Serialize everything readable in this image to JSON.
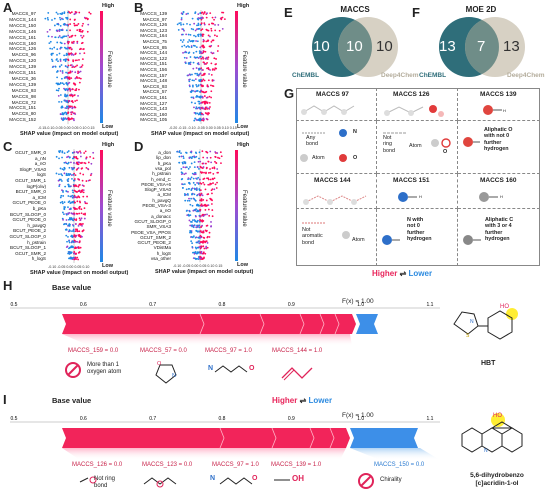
{
  "colors": {
    "high": "#ff0a5a",
    "low": "#1e88e5",
    "red": "#e8245a",
    "blue": "#2d8be0",
    "lightred": "#f7a7bd"
  },
  "panels": {
    "A": "A",
    "B": "B",
    "C": "C",
    "D": "D",
    "E": "E",
    "F": "F",
    "G": "G",
    "H": "H",
    "I": "I"
  },
  "shap": {
    "high": "High",
    "low": "Low",
    "feature_value": "Feature value",
    "xlabel": "SHAP value (impact on model output)",
    "ticks_A": "-0.15-0.10-0.05 0.00 0.05 0.10 0.15",
    "ticks_B": "-0.20 -0.15 -0.10 -0.05 0.00 0.05 0.10 0.15",
    "ticks_C": "-0.10 -0.05 0.00 0.05 0.10",
    "ticks_D": "-0.10 -0.05 0.00 0.05 0.10 0.15",
    "A": [
      "MACCS_97",
      "MACCS_144",
      "MACCS_150",
      "MACCS_146",
      "MACCS_161",
      "MACCS_160",
      "MACCS_126",
      "MACCS_96",
      "MACCS_120",
      "MACCS_139",
      "MACCS_151",
      "MACCS_36",
      "MACCS_139",
      "MACCS_93",
      "MACCS_98",
      "MACCS_72",
      "MACCS_151",
      "MACCS_80",
      "MACCS_152"
    ],
    "B": [
      "MACCS_139",
      "MACCS_97",
      "MACCS_126",
      "MACCS_123",
      "MACCS_164",
      "MACCS_75",
      "MACCS_85",
      "MACCS_144",
      "MACCS_122",
      "MACCS_151",
      "MACCS_156",
      "MACCS_157",
      "MACCS_148",
      "MACCS_93",
      "MACCS_57",
      "MACCS_161",
      "MACCS_127",
      "MACCS_143",
      "MACCS_160",
      "MACCS_105"
    ],
    "C": [
      "GCUT_SMR_0",
      "a_nN",
      "a_nO",
      "SlogP_VSA0",
      "logS",
      "GCUT_SMR_1",
      "logP(o/w)",
      "BCUT_SMR_0",
      "a_ICM",
      "GCUT_PEOE_0",
      "b_pKa",
      "BCUT_SLOGP_0",
      "GCUT_PEOE_0",
      "h_pavgQ",
      "BCUT_PEOE_2",
      "GCUT_SLOGP_0",
      "h_pstrain",
      "BCUT_SLOGP_1",
      "GCUT_SMR_2",
      "h_logS"
    ],
    "D": [
      "a_don",
      "lip_don",
      "h_pKa",
      "vsa_pol",
      "h_pstrain",
      "h_emd_C",
      "PEOE_VSA+6",
      "SlogP_VSA0",
      "a_ICM",
      "h_pavgQ",
      "PEOE_VSA-3",
      "a_nO",
      "a_donacc",
      "GCUT_SLOGP_0",
      "SMR_VSA3",
      "PEOE_VSA_PPOS",
      "GCUT_SMR_2",
      "GCUT_PEOE_2",
      "VDistMa",
      "h_logS",
      "vsa_other"
    ]
  },
  "venn": {
    "E": {
      "title": "MACCS",
      "left": "10",
      "mid": "10",
      "right": "10",
      "lab_left": "ChEMBL",
      "lab_right": "Deep4Chem"
    },
    "F": {
      "title": "MOE 2D",
      "left": "13",
      "mid": "7",
      "right": "13",
      "lab_left": "ChEMBL",
      "lab_right": "Deep4Chem"
    }
  },
  "grid": {
    "c97": "MACCS 97",
    "c126": "MACCS 126",
    "c139": "MACCS 139",
    "any_bond": "Any\nbond",
    "atom": "Atom",
    "n_label": "N",
    "o_label": "O",
    "o_label2": "O",
    "not_ring": "Not\nring\nbond",
    "atom2": "Atom",
    "aliph_o": "Aliphatic O\nwith not 0\nfurther\nhydrogen",
    "c144": "MACCS 144",
    "c151": "MACCS 151",
    "c160": "MACCS 160",
    "not_arom": "Not\naromatic\nbond",
    "atom3": "Atom",
    "n_not0": "N with\nnot 0\nfurther\nhydrogen",
    "aliph_c": "Aliphatic C\nwith 3 or 4\nfurther\nhydrogen",
    "h_sub": "H",
    "h_sub2": "H",
    "h_sub3": "H"
  },
  "legend": {
    "higher": "Higher",
    "lower": "Lower",
    "arrows": "⇌"
  },
  "H": {
    "base": "Base value",
    "fx": "F(x) = 1.00",
    "axis": [
      "0.5",
      "0.6",
      "0.7",
      "0.8",
      "0.9",
      "1.0",
      "1.1"
    ],
    "f1": "MACCS_159 = 0.0",
    "f2": "MACCS_57 = 0.0",
    "f3": "MACCS_97 = 1.0",
    "f4": "MACCS_144 = 1.0",
    "cap1": "More than 1\noxygen atom",
    "mol": "HBT",
    "ho": "HO",
    "n_atom": "N",
    "o_atom": "O",
    "s_atom": "S"
  },
  "I": {
    "base": "Base value",
    "fx": "F(x) = 1.00",
    "axis": [
      "0.5",
      "0.6",
      "0.7",
      "0.8",
      "0.9",
      "1.0",
      "1.1"
    ],
    "f1": "MACCS_126 = 0.0",
    "f2": "MACCS_123 = 0.0",
    "f3": "MACCS_97 = 1.0",
    "f4": "MACCS_139 = 1.0",
    "f5": "MACCS_150 = 0.0",
    "cap1": "Not ring\nbond",
    "cap2": "Chirality",
    "oh": "OH",
    "n_atom": "N",
    "o_atom": "O",
    "mol": "5,6-dihydrobenzo\n[c]acridin-1-ol",
    "ho2": "HO"
  }
}
